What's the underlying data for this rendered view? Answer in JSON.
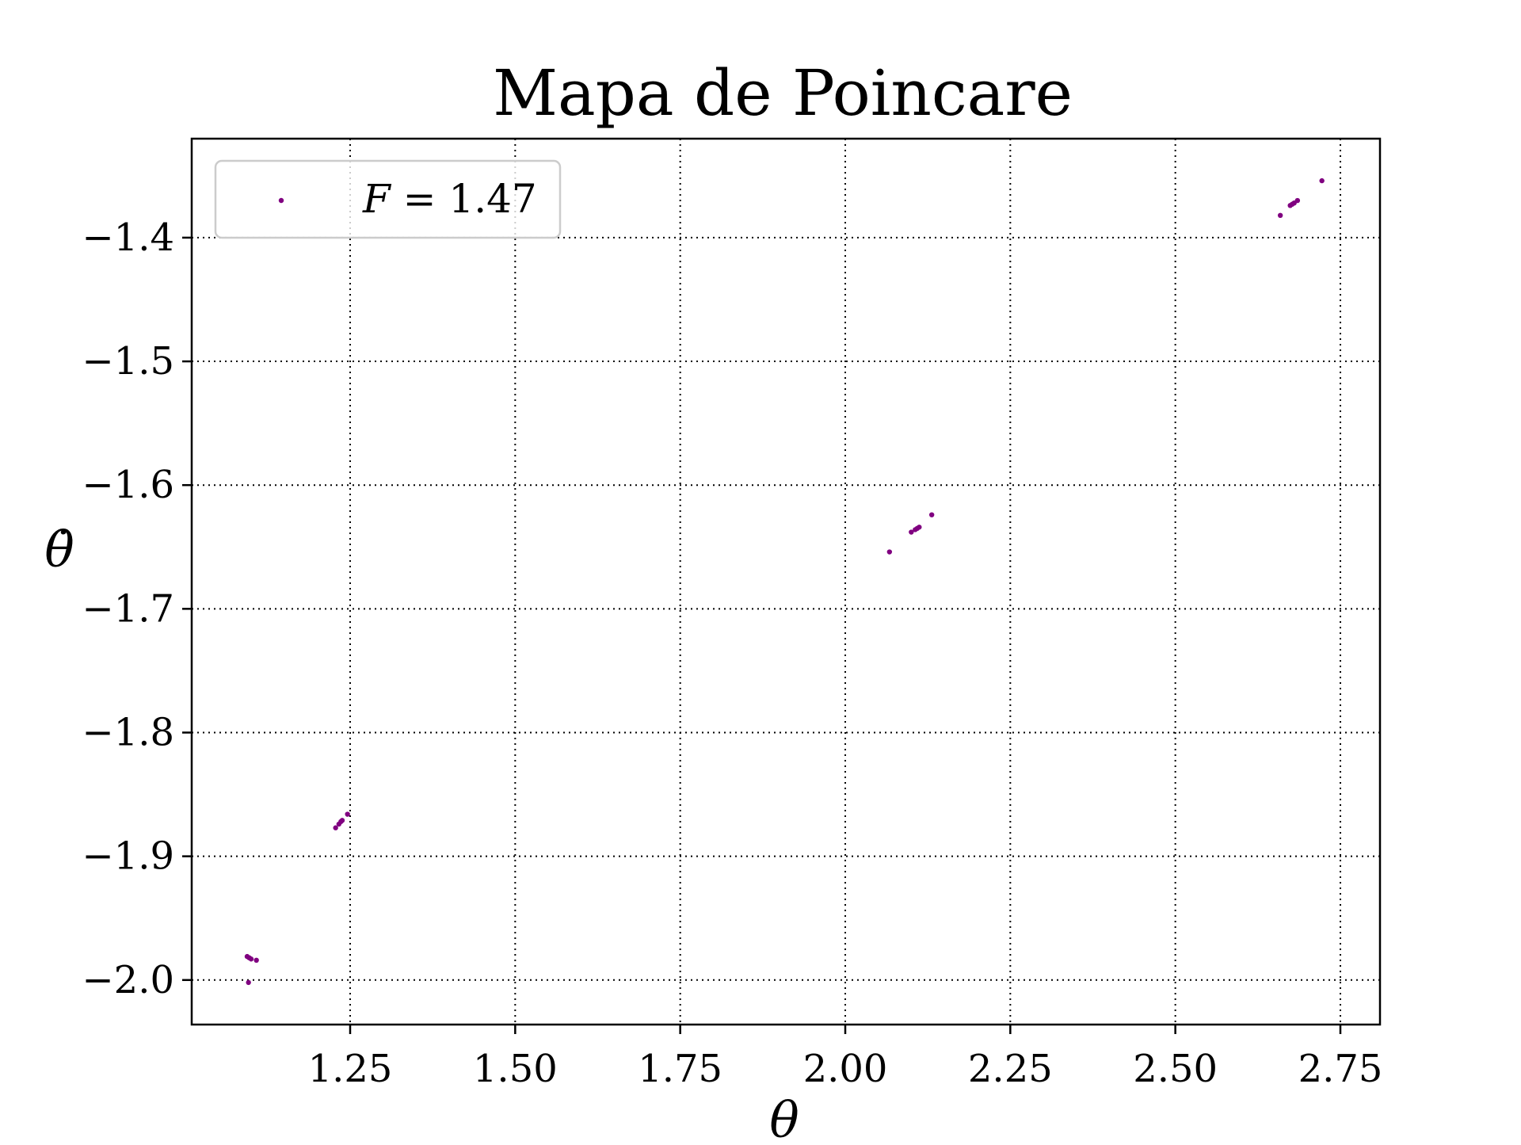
{
  "chart_data": {
    "type": "scatter",
    "title": "Mapa de Poincare",
    "xlabel": "θ",
    "ylabel": "θ̇",
    "xlim": [
      1.01,
      2.81
    ],
    "ylim": [
      -2.036,
      -1.32
    ],
    "xticks": [
      1.25,
      1.5,
      1.75,
      2.0,
      2.25,
      2.5,
      2.75
    ],
    "xtick_labels": [
      "1.25",
      "1.50",
      "1.75",
      "2.00",
      "2.25",
      "2.50",
      "2.75"
    ],
    "yticks": [
      -1.4,
      -1.5,
      -1.6,
      -1.7,
      -1.8,
      -1.9,
      -2.0
    ],
    "ytick_labels": [
      "−1.4",
      "−1.5",
      "−1.6",
      "−1.7",
      "−1.8",
      "−1.9",
      "−2.0"
    ],
    "grid": true,
    "grid_style": "dotted",
    "legend_position": "top-left",
    "series": [
      {
        "name": "F = 1.47",
        "name_var": "F",
        "name_rest": " = 1.47",
        "color": "#800080",
        "x": [
          1.094,
          1.097,
          1.1,
          1.108,
          1.096,
          1.228,
          1.233,
          1.236,
          1.238,
          1.246,
          2.067,
          2.1,
          2.106,
          2.109,
          2.112,
          2.131,
          2.659,
          2.674,
          2.677,
          2.68,
          2.685,
          2.722
        ],
        "y": [
          -1.981,
          -1.982,
          -1.983,
          -1.984,
          -2.002,
          -1.877,
          -1.874,
          -1.872,
          -1.871,
          -1.866,
          -1.654,
          -1.638,
          -1.636,
          -1.635,
          -1.634,
          -1.624,
          -1.382,
          -1.374,
          -1.373,
          -1.372,
          -1.37,
          -1.354
        ]
      }
    ]
  }
}
